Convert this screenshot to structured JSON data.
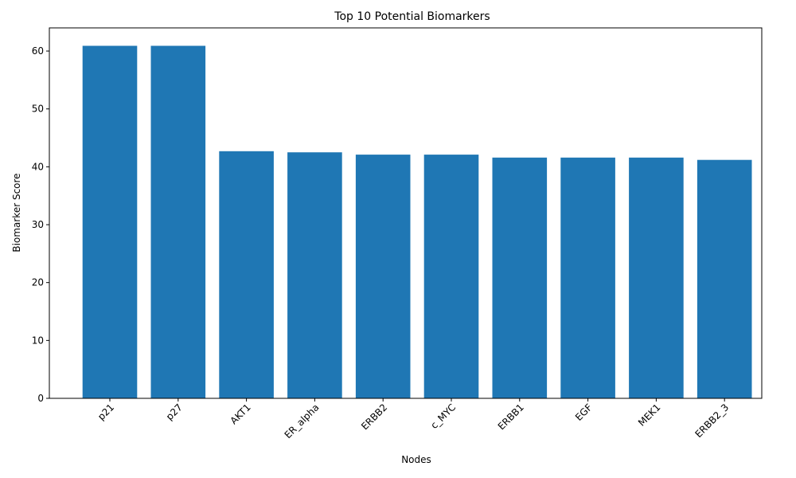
{
  "chart_data": {
    "type": "bar",
    "title": "Top 10 Potential Biomarkers",
    "xlabel": "Nodes",
    "ylabel": "Biomarker Score",
    "categories": [
      "p21",
      "p27",
      "AKT1",
      "ER_alpha",
      "ERBB2",
      "c_MYC",
      "ERBB1",
      "EGF",
      "MEK1",
      "ERBB2_3"
    ],
    "values": [
      60.9,
      60.9,
      42.7,
      42.5,
      42.1,
      42.1,
      41.6,
      41.6,
      41.6,
      41.2
    ],
    "ylim": [
      0,
      64
    ],
    "yticks": [
      0,
      10,
      20,
      30,
      40,
      50,
      60
    ],
    "color": "#1f77b4",
    "grid": false,
    "legend": "none"
  }
}
